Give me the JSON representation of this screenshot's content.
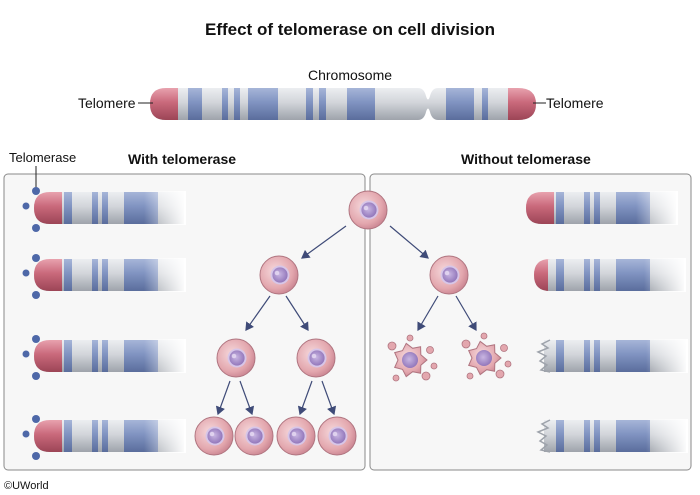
{
  "title": "Effect of telomerase on cell division",
  "chromosome": {
    "label": "Chromosome",
    "telomere_left_label": "Telomere",
    "telomere_right_label": "Telomere"
  },
  "panels": {
    "telomerase_label": "Telomerase",
    "with_heading": "With telomerase",
    "without_heading": "Without telomerase"
  },
  "credit": "©UWorld",
  "colors": {
    "telomere": "#c9697b",
    "band_blue": "#7f93bf",
    "chromatid_gray": "#d3d5da",
    "enzyme_blue": "#4e68a8",
    "cell_pink": "#e7b2b8",
    "nucleus_purple": "#a78ccb",
    "arrow": "#3f4b78",
    "panel_border": "#8a8a8a"
  }
}
